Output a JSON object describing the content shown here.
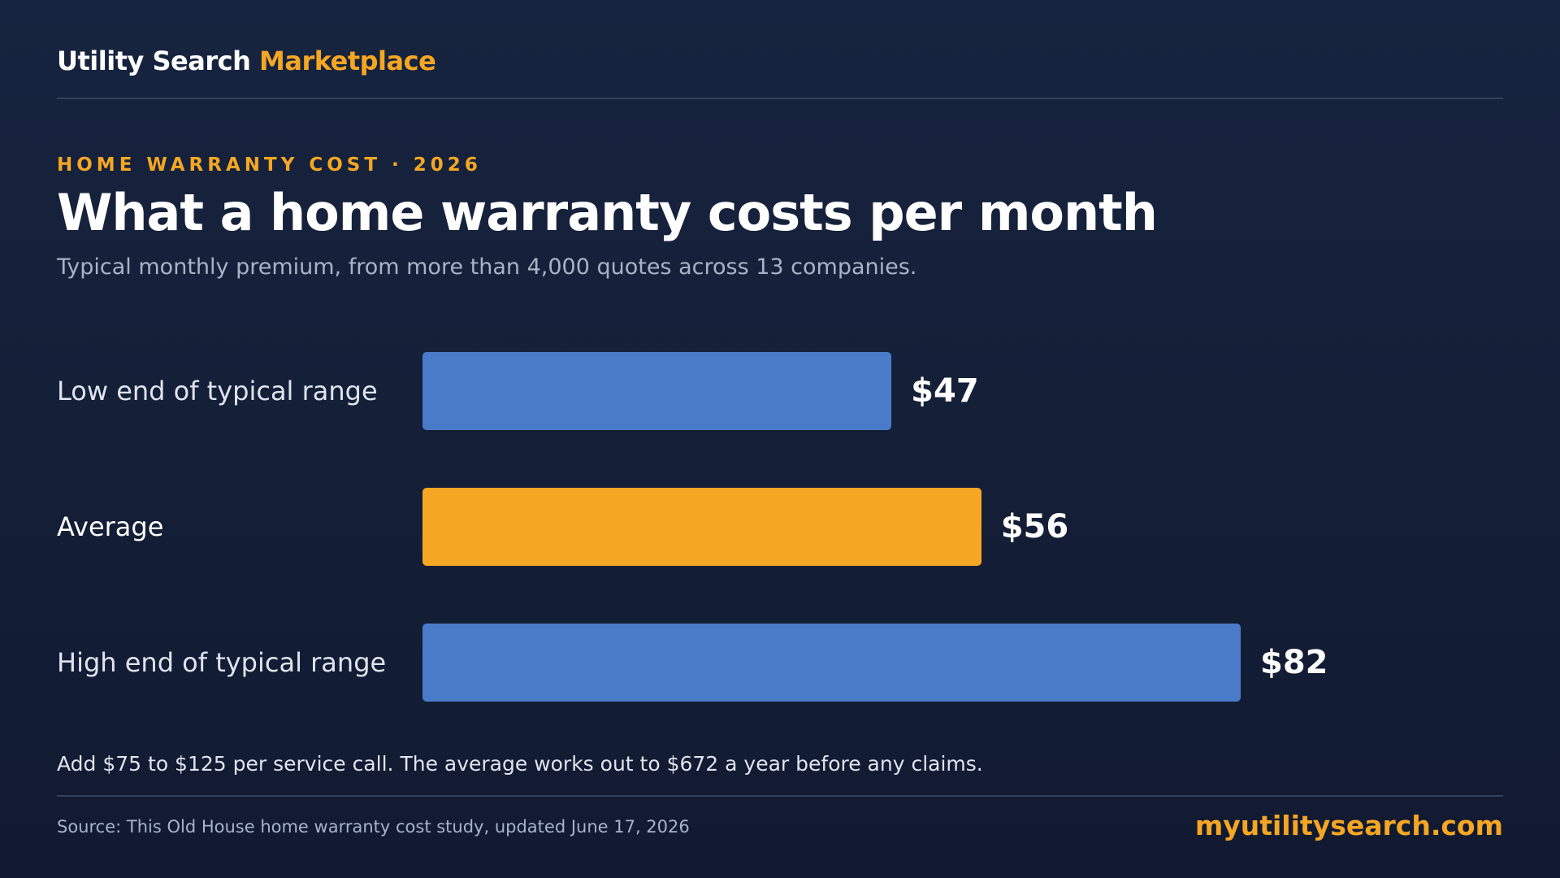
{
  "header": {
    "brand_main": "Utility Search",
    "brand_accent": "Marketplace"
  },
  "eyebrow": "HOME WARRANTY COST · 2026",
  "footnote": "Add $75 to $125 per service call. The average works out to $672 a year before any claims.",
  "footer": {
    "source": "Source: This Old House home warranty cost study, updated June 17, 2026",
    "site": "myutilitysearch.com"
  },
  "colors": {
    "range": "#4a7bc8",
    "average": "#f5a623",
    "accent": "#f5a623",
    "background": "#141f38"
  },
  "chart_data": {
    "type": "bar",
    "orientation": "horizontal",
    "title": "What a home warranty costs per month",
    "subtitle": "Typical monthly premium, from more than 4,000 quotes across 13 companies.",
    "categories": [
      "Low end of typical range",
      "Average",
      "High end of typical range"
    ],
    "values": [
      47,
      56,
      82
    ],
    "value_labels": [
      "$47",
      "$56",
      "$82"
    ],
    "highlight_index": 1,
    "xlim": [
      0,
      82
    ],
    "grid": false,
    "legend": "none"
  }
}
